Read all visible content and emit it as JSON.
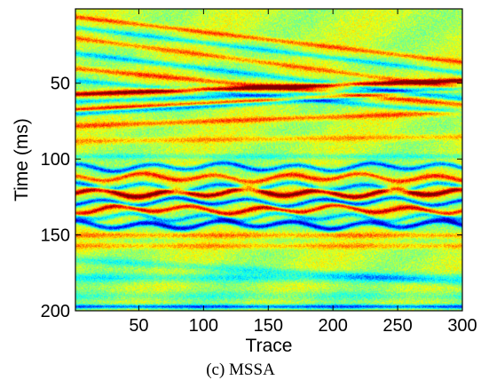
{
  "chart_data": {
    "type": "heatmap",
    "title": "",
    "xlabel": "Trace",
    "ylabel": "Time (ms)",
    "xlim": [
      1,
      300
    ],
    "ylim": [
      200,
      1
    ],
    "x_ticks": [
      50,
      100,
      150,
      200,
      250,
      300
    ],
    "y_ticks": [
      50,
      100,
      150,
      200
    ],
    "colormap": "jet",
    "colormap_stops": [
      "#00008f",
      "#0000ff",
      "#00ffff",
      "#ffff00",
      "#ff0000",
      "#800000"
    ],
    "value_range": [
      -1,
      1
    ],
    "grid": false,
    "events": [
      {
        "t0": 6,
        "slope": 0.1,
        "amp": 0.45,
        "width": 1.6
      },
      {
        "t0": 13,
        "slope": 0.1,
        "amp": -0.4,
        "width": 1.6
      },
      {
        "t0": 20,
        "slope": 0.11,
        "amp": 0.4,
        "width": 1.7
      },
      {
        "t0": 30,
        "slope": 0.1,
        "amp": -0.45,
        "width": 1.8
      },
      {
        "t0": 40,
        "slope": 0.08,
        "amp": 0.5,
        "width": 1.8
      },
      {
        "t0": 48,
        "slope": 0.07,
        "amp": -0.4,
        "width": 1.6
      },
      {
        "t0": 57,
        "slope": -0.03,
        "amp": 0.95,
        "width": 1.6
      },
      {
        "t0": 62,
        "slope": -0.03,
        "amp": -0.45,
        "width": 1.4
      },
      {
        "t0": 67,
        "slope": -0.04,
        "amp": 0.6,
        "width": 1.3
      },
      {
        "t0": 70,
        "slope": -0.05,
        "amp": -0.55,
        "width": 1.6
      },
      {
        "t0": 78,
        "slope": -0.03,
        "amp": 0.45,
        "width": 1.8
      },
      {
        "t0": 88,
        "slope": -0.01,
        "amp": 0.3,
        "width": 1.8
      },
      {
        "t0": 98,
        "slope": 0.0,
        "amp": -0.25,
        "width": 1.8
      },
      {
        "t0": 105,
        "slope": 0.0,
        "amp": -0.7,
        "width": 1.6,
        "wiggle": 2.0
      },
      {
        "t0": 112,
        "slope": 0.0,
        "amp": 0.55,
        "width": 1.6,
        "wiggle": 2.0
      },
      {
        "t0": 118,
        "slope": 0.0,
        "amp": -0.6,
        "width": 1.5,
        "wiggle": 2.0
      },
      {
        "t0": 122,
        "slope": 0.0,
        "amp": 0.95,
        "width": 1.8,
        "wiggle": 2.0
      },
      {
        "t0": 128,
        "slope": 0.0,
        "amp": -0.75,
        "width": 1.5,
        "wiggle": 2.0
      },
      {
        "t0": 133,
        "slope": 0.0,
        "amp": 0.7,
        "width": 1.6,
        "wiggle": 2.0
      },
      {
        "t0": 138,
        "slope": 0.0,
        "amp": -0.5,
        "width": 1.6,
        "wiggle": 2.0
      },
      {
        "t0": 143,
        "slope": 0.0,
        "amp": -0.9,
        "width": 1.8,
        "wiggle": 2.0
      },
      {
        "t0": 150,
        "slope": 0.0,
        "amp": 0.35,
        "width": 1.8
      },
      {
        "t0": 157,
        "slope": 0.0,
        "amp": 0.3,
        "width": 1.8
      },
      {
        "t0": 166,
        "slope": 0.05,
        "amp": -0.25,
        "width": 2.5
      },
      {
        "t0": 178,
        "slope": 0.0,
        "amp": -0.3,
        "width": 3.0
      },
      {
        "t0": 190,
        "slope": 0.0,
        "amp": -0.2,
        "width": 3.0
      },
      {
        "t0": 197,
        "slope": 0.0,
        "amp": -0.7,
        "width": 1.4
      }
    ]
  },
  "caption": "(c) MSSA"
}
